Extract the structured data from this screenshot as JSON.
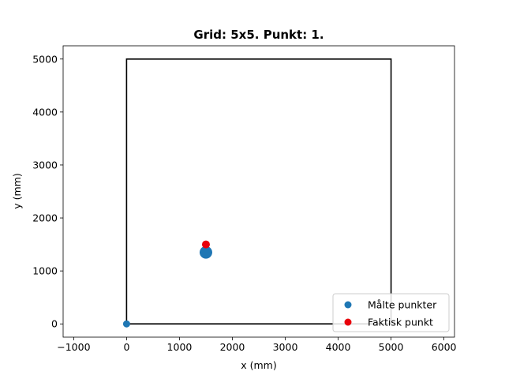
{
  "chart_data": {
    "type": "scatter",
    "title": "Grid: 5x5. Punkt: 1.",
    "xlabel": "x (mm)",
    "ylabel": "y (mm)",
    "xlim": [
      -1200,
      6200
    ],
    "ylim": [
      -250,
      5250
    ],
    "xticks": [
      -1000,
      0,
      1000,
      2000,
      3000,
      4000,
      5000,
      6000
    ],
    "yticks": [
      0,
      1000,
      2000,
      3000,
      4000,
      5000
    ],
    "grid": false,
    "legend_position": "lower-right",
    "boundary": {
      "x": [
        0,
        5000,
        5000,
        0,
        0
      ],
      "y": [
        0,
        0,
        5000,
        5000,
        0
      ],
      "color": "#000000"
    },
    "series": [
      {
        "name": "Målte punkter",
        "color": "#1f77b4",
        "points": [
          {
            "x": 0,
            "y": 0,
            "size": "small"
          },
          {
            "x": 1500,
            "y": 1350,
            "size": "large"
          }
        ]
      },
      {
        "name": "Faktisk punkt",
        "color": "#e8000b",
        "points": [
          {
            "x": 1500,
            "y": 1500,
            "size": "medium"
          }
        ]
      }
    ]
  }
}
